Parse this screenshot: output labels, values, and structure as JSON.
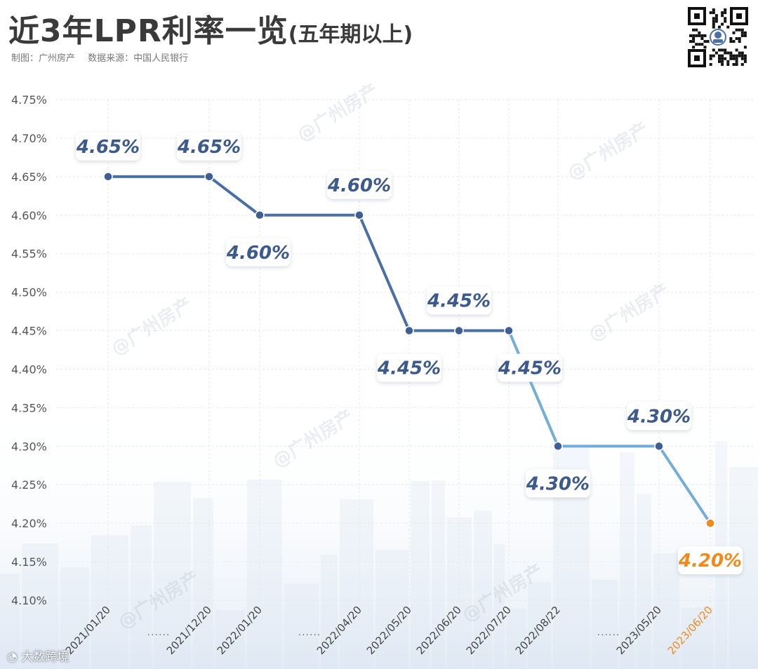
{
  "header": {
    "title": "近3年LPR利率一览",
    "title_sub": "(五年期以上)",
    "maker": "制图：广州房产",
    "source": "数据来源：中国人民银行"
  },
  "watermark": "@广州房产",
  "footer": {
    "logo_text": "大数跨境"
  },
  "qr_icon": "qr-code-icon",
  "colors": {
    "line_dark": "#4a6fa5",
    "line_light": "#74aed8",
    "marker": "#3f5f94",
    "highlight": "#f08a1d",
    "label": "#3c5a8c",
    "grid": "#e6e9ee",
    "axis_text": "#555555"
  },
  "chart_data": {
    "type": "line",
    "x": [
      "2021/01/20",
      "2021/12/20",
      "2022/01/20",
      "2022/04/20",
      "2022/05/20",
      "2022/06/20",
      "2022/07/20",
      "2022/08/22",
      "2023/05/20",
      "2023/06/20"
    ],
    "series": [
      {
        "values": [
          4.65,
          4.65,
          4.6,
          4.6,
          4.45,
          4.45,
          4.45,
          4.3,
          4.3,
          4.2
        ]
      }
    ],
    "data_labels": [
      "4.65%",
      "4.65%",
      "4.60%",
      "4.60%",
      "4.45%",
      "4.45%",
      "4.45%",
      "4.30%",
      "4.30%",
      "4.20%"
    ],
    "label_positions": [
      "above",
      "above",
      "below",
      "above",
      "below",
      "above",
      "below",
      "below",
      "above",
      "below"
    ],
    "highlight_index": 9,
    "gap_markers": [
      "......",
      "......",
      "......"
    ],
    "ylim": [
      4.1,
      4.75
    ],
    "yticks": [
      "4.10%",
      "4.15%",
      "4.20%",
      "4.25%",
      "4.30%",
      "4.35%",
      "4.40%",
      "4.45%",
      "4.50%",
      "4.55%",
      "4.60%",
      "4.65%",
      "4.70%",
      "4.75%"
    ],
    "grid": true,
    "legend": "none"
  }
}
